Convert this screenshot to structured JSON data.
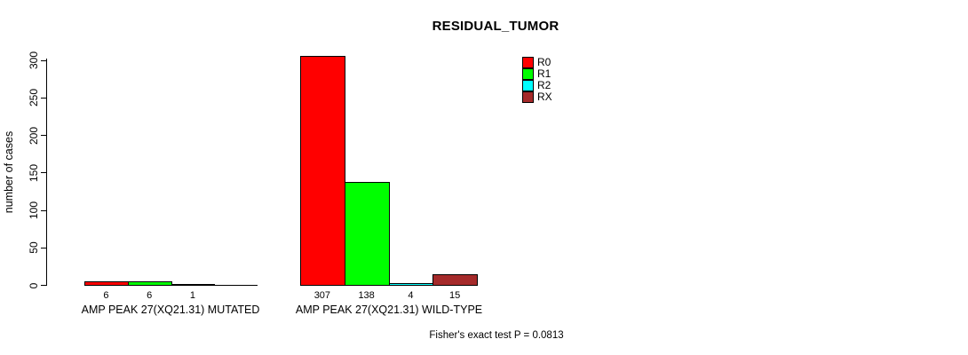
{
  "title": "RESIDUAL_TUMOR",
  "chart_data": {
    "type": "bar",
    "title": "RESIDUAL_TUMOR",
    "xlabel": "",
    "ylabel": "number of cases",
    "ylim": [
      0,
      300
    ],
    "yticks": [
      0,
      50,
      100,
      150,
      200,
      250,
      300
    ],
    "grid": false,
    "legend_position": "top-right",
    "categories": [
      "AMP PEAK 27(XQ21.31) MUTATED",
      "AMP PEAK 27(XQ21.31) WILD-TYPE"
    ],
    "series": [
      {
        "name": "R0",
        "color": "#ff0000",
        "values": [
          6,
          307
        ]
      },
      {
        "name": "R1",
        "color": "#00ff00",
        "values": [
          6,
          138
        ]
      },
      {
        "name": "R2",
        "color": "#00ffff",
        "values": [
          1,
          4
        ]
      },
      {
        "name": "RX",
        "color": "#a52a2a",
        "values": [
          0,
          15
        ]
      }
    ],
    "bar_value_labels": [
      [
        "6",
        "6",
        "1",
        ""
      ],
      [
        "307",
        "138",
        "4",
        "15"
      ]
    ],
    "annotation": "Fisher's exact test P = 0.0813"
  },
  "colors": {
    "axis": "#000000",
    "background": "#ffffff",
    "r0": "#ff0000",
    "r1": "#00ff00",
    "r2": "#00ffff",
    "rx": "#a52a2a"
  }
}
